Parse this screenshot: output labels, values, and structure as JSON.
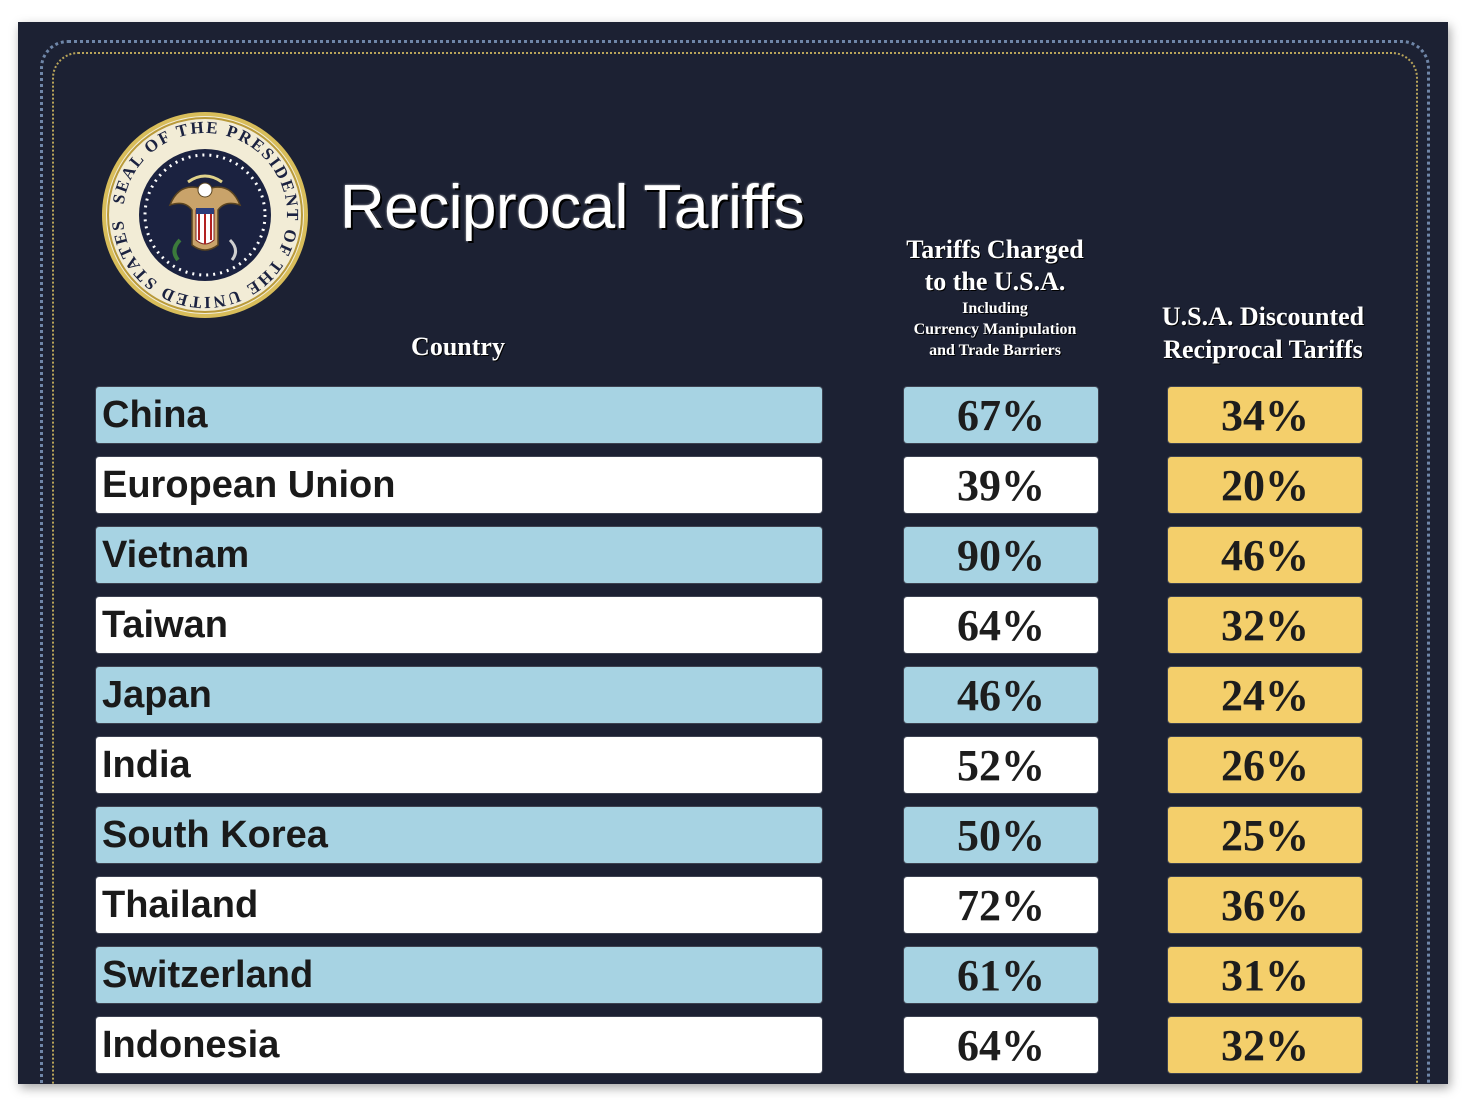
{
  "seal": {
    "text_top": "PRESIDENT OF THE UNITED",
    "text_bottom": "SEAL OF THE STATES",
    "inscription": "SEAL OF THE PRESIDENT OF THE UNITED STATES"
  },
  "title": "Reciprocal Tariffs",
  "headers": {
    "country": "Country",
    "charged_line1": "Tariffs Charged",
    "charged_line2": "to the U.S.A.",
    "charged_sub1": "Including",
    "charged_sub2": "Currency Manipulation",
    "charged_sub3": "and Trade Barriers",
    "discounted_line1": "U.S.A. Discounted",
    "discounted_line2": "Reciprocal Tariffs"
  },
  "rows": [
    {
      "country": "China",
      "charged": "67%",
      "discounted": "34%"
    },
    {
      "country": "European Union",
      "charged": "39%",
      "discounted": "20%"
    },
    {
      "country": "Vietnam",
      "charged": "90%",
      "discounted": "46%"
    },
    {
      "country": "Taiwan",
      "charged": "64%",
      "discounted": "32%"
    },
    {
      "country": "Japan",
      "charged": "46%",
      "discounted": "24%"
    },
    {
      "country": "India",
      "charged": "52%",
      "discounted": "26%"
    },
    {
      "country": "South Korea",
      "charged": "50%",
      "discounted": "25%"
    },
    {
      "country": "Thailand",
      "charged": "72%",
      "discounted": "36%"
    },
    {
      "country": "Switzerland",
      "charged": "61%",
      "discounted": "31%"
    },
    {
      "country": "Indonesia",
      "charged": "64%",
      "discounted": "32%"
    }
  ],
  "colors": {
    "background": "#1c2133",
    "row_blue": "#a7d3e3",
    "row_white": "#ffffff",
    "discount_gold": "#f4cf6b",
    "seal_gold": "#c9a93f"
  }
}
